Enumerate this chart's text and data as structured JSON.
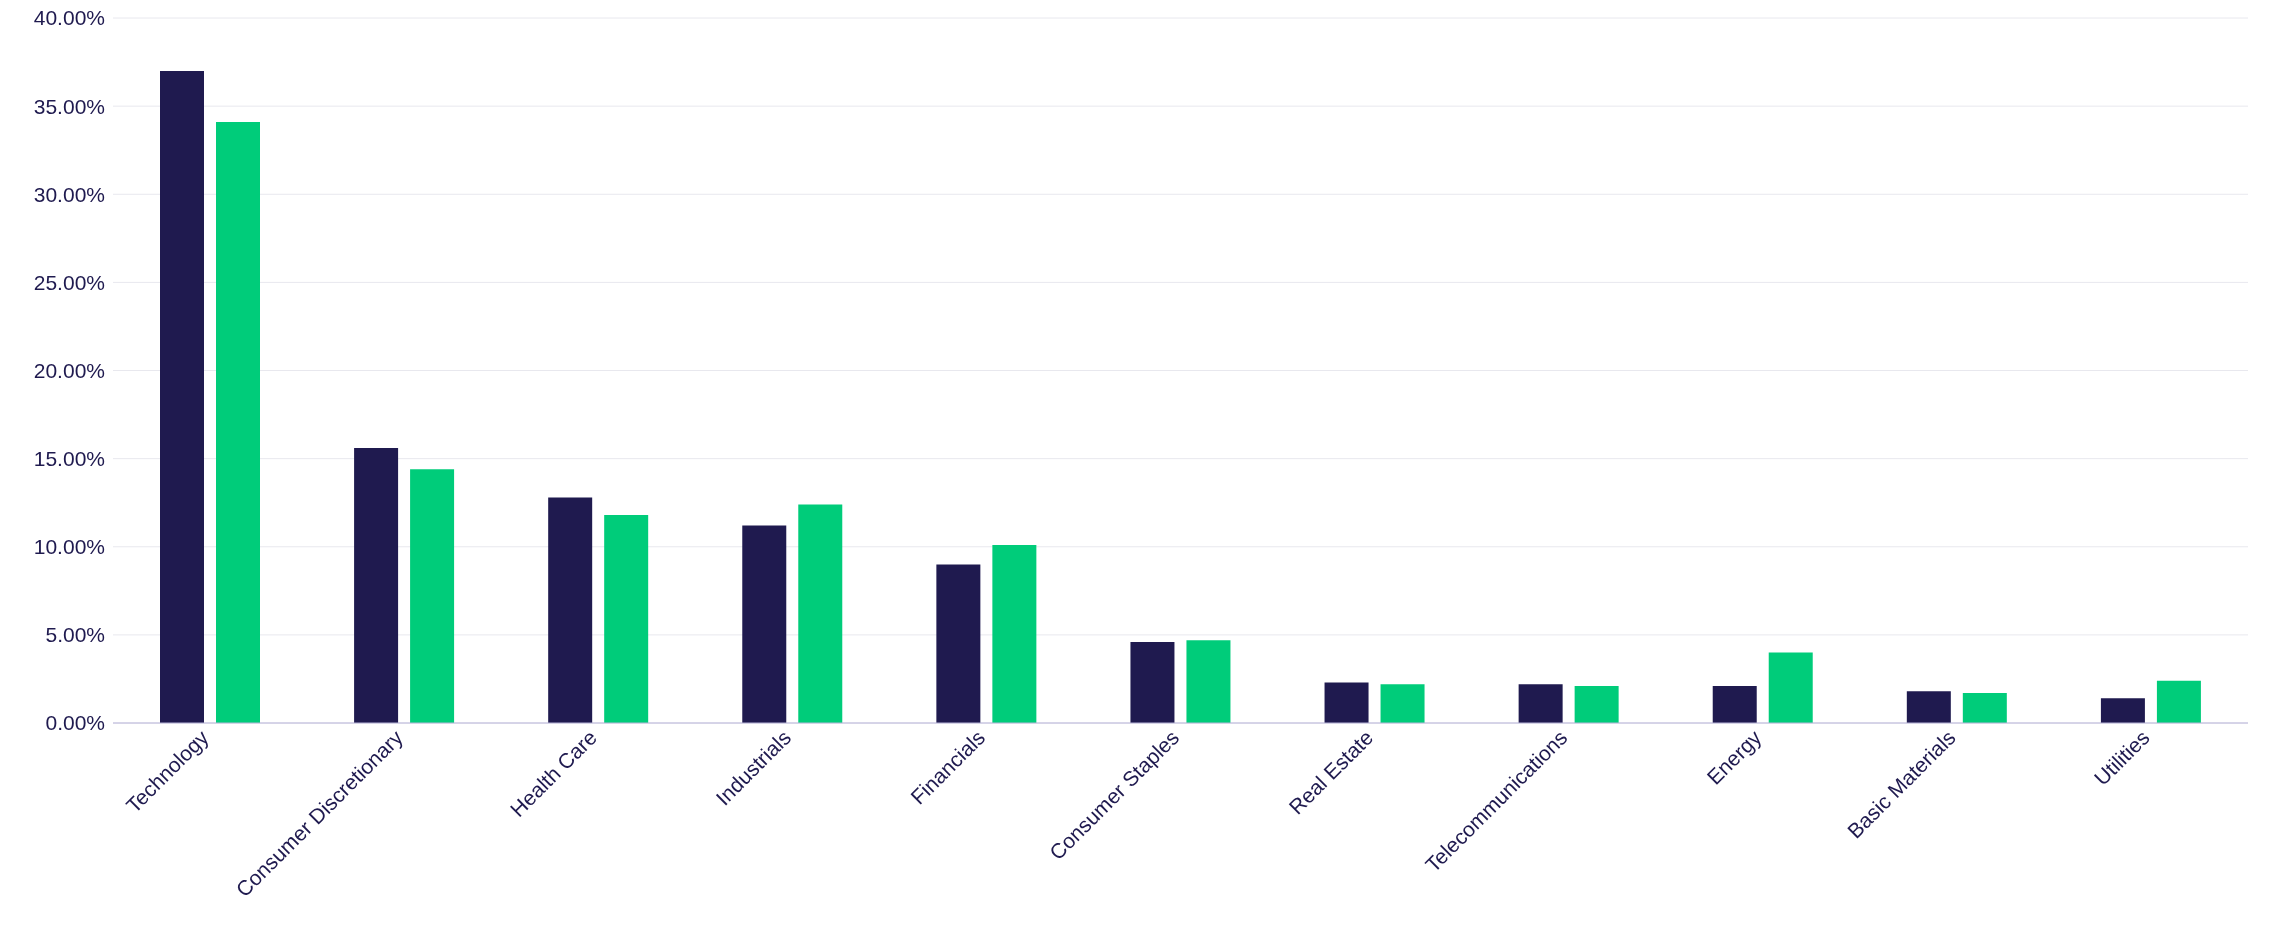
{
  "chart_data": {
    "type": "bar",
    "categories": [
      "Technology",
      "Consumer Discretionary",
      "Health Care",
      "Industrials",
      "Financials",
      "Consumer Staples",
      "Real Estate",
      "Telecommunications",
      "Energy",
      "Basic Materials",
      "Utilities"
    ],
    "series": [
      {
        "color": "#1f1a4f",
        "values": [
          37.0,
          15.6,
          12.8,
          11.2,
          9.0,
          4.6,
          2.3,
          2.2,
          2.1,
          1.8,
          1.4
        ]
      },
      {
        "color": "#00cc7a",
        "values": [
          34.1,
          14.4,
          11.8,
          12.4,
          10.1,
          4.7,
          2.2,
          2.1,
          4.0,
          1.7,
          2.4
        ]
      }
    ],
    "ylim": [
      0,
      40
    ],
    "yticks": [
      {
        "value": 0,
        "label": "0.00%"
      },
      {
        "value": 5,
        "label": "5.00%"
      },
      {
        "value": 10,
        "label": "10.00%"
      },
      {
        "value": 15,
        "label": "15.00%"
      },
      {
        "value": 20,
        "label": "20.00%"
      },
      {
        "value": 25,
        "label": "25.00%"
      },
      {
        "value": 30,
        "label": "30.00%"
      },
      {
        "value": 35,
        "label": "35.00%"
      },
      {
        "value": 40,
        "label": "40.00%"
      }
    ],
    "grid": "y"
  }
}
